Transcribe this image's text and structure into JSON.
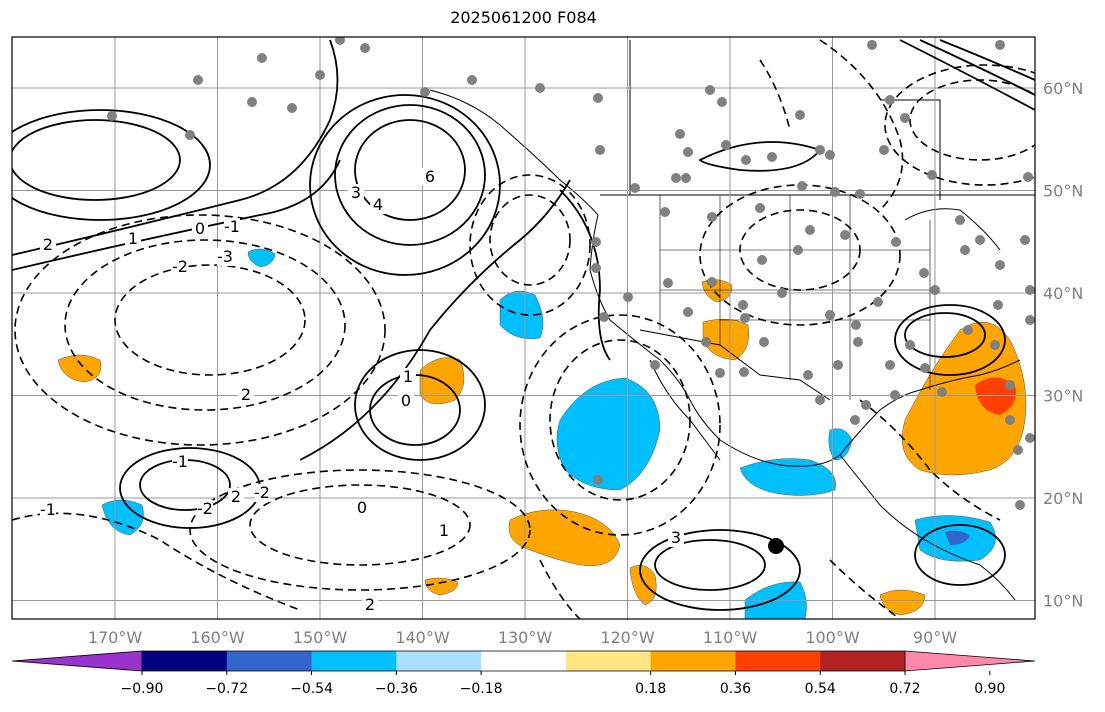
{
  "title": "2025061200 F084",
  "map": {
    "lon_range": [
      -180,
      -78
    ],
    "lat_range": [
      7,
      64
    ],
    "lat_ticks": [
      "60°N",
      "50°N",
      "40°N",
      "30°N",
      "20°N",
      "10°N"
    ],
    "lon_ticks": [
      "170°W",
      "160°W",
      "150°W",
      "140°W",
      "130°W",
      "120°W",
      "110°W",
      "100°W",
      "90°W"
    ],
    "grid": true,
    "contour_colors": {
      "solid": "#000000",
      "dashed": "#000000"
    },
    "contour_labels": [
      "6",
      "4",
      "3",
      "2",
      "1",
      "0",
      "-1",
      "-2",
      "-3",
      "2",
      "1",
      "0",
      "-1",
      "-2",
      "2",
      "-2",
      "0",
      "1",
      "-1",
      "2",
      "3"
    ],
    "station_marker_color": "#808080",
    "highlight_marker_color": "#000000"
  },
  "colorbar": {
    "colors": [
      "#9933cc",
      "#000080",
      "#3366cc",
      "#00bfff",
      "#aadfff",
      "#ffffff",
      "#ffe680",
      "#ffa500",
      "#ff4000",
      "#b22222",
      "#ff88aa"
    ],
    "tick_labels": [
      "−0.90",
      "−0.72",
      "−0.54",
      "−0.36",
      "−0.18",
      "0.18",
      "0.36",
      "0.54",
      "0.72",
      "0.90"
    ],
    "extend": "both"
  }
}
